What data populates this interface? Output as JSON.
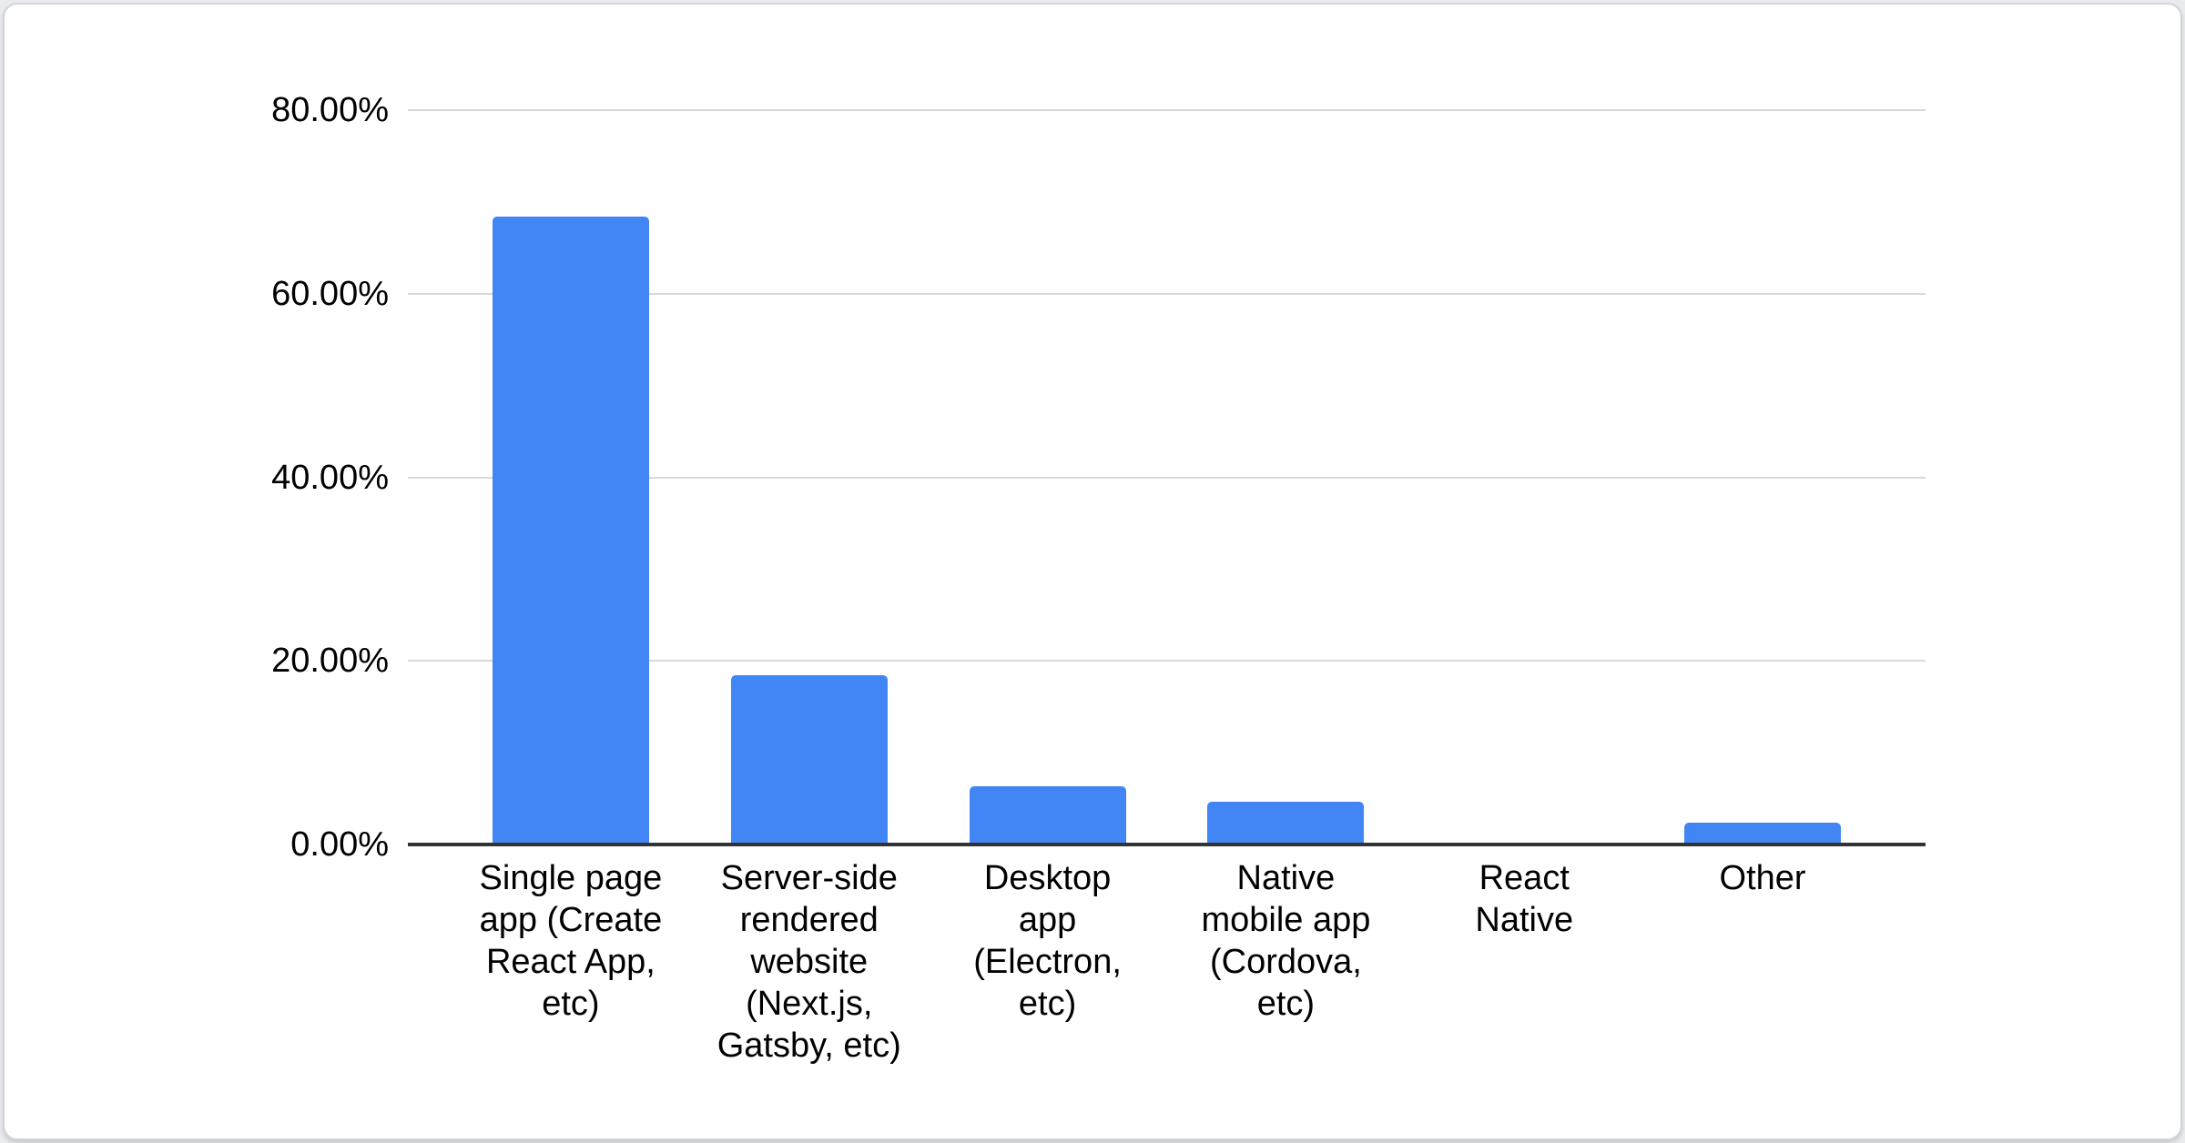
{
  "chart_data": {
    "type": "bar",
    "title": "",
    "xlabel": "",
    "ylabel": "",
    "legend": "none",
    "grid": true,
    "categories": [
      "Single page app (Create React App, etc)",
      "Server-side rendered website (Next.js, Gatsby, etc)",
      "Desktop app (Electron, etc)",
      "Native mobile app (Cordova, etc)",
      "React Native",
      "Other"
    ],
    "category_lines": [
      [
        "Single page",
        "app (Create",
        "React App,",
        "etc)"
      ],
      [
        "Server-side",
        "rendered",
        "website",
        "(Next.js,",
        "Gatsby, etc)"
      ],
      [
        "Desktop",
        "app",
        "(Electron,",
        "etc)"
      ],
      [
        "Native",
        "mobile app",
        "(Cordova,",
        "etc)"
      ],
      [
        "React",
        "Native"
      ],
      [
        "Other"
      ]
    ],
    "values": [
      68.4,
      18.4,
      6.3,
      4.7,
      0,
      2.4
    ],
    "value_unit": "%",
    "ylim": [
      0,
      80
    ],
    "yticks": [
      0,
      20,
      40,
      60,
      80
    ],
    "ytick_labels": [
      "0.00%",
      "20.00%",
      "40.00%",
      "60.00%",
      "80.00%"
    ],
    "colors": {
      "bar": "#4285f4",
      "gridline": "#d9d9d9",
      "axis_line": "#333333",
      "text": "#000000",
      "card_bg": "#ffffff",
      "card_border": "#d2d4d9",
      "page_bg": "#e9ebee"
    }
  }
}
